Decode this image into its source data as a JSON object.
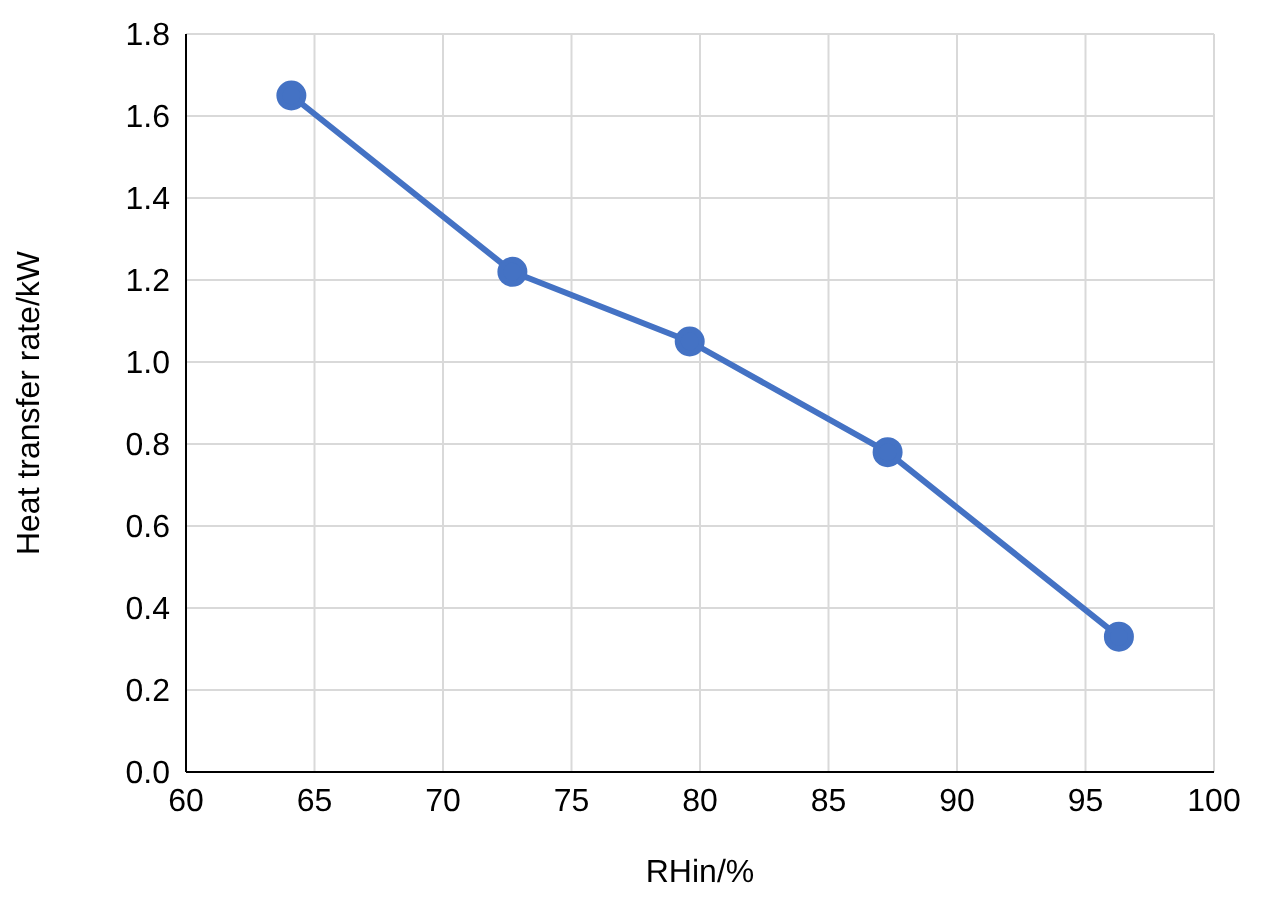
{
  "chart_data": {
    "type": "line",
    "xlabel": "RHin/%",
    "ylabel": "Heat transfer rate/kW",
    "x": [
      64.1,
      72.7,
      79.6,
      87.3,
      96.3
    ],
    "series": [
      {
        "color": "#4472c4",
        "values": [
          1.65,
          1.22,
          1.05,
          0.78,
          0.33
        ]
      }
    ],
    "xlim": [
      60,
      100
    ],
    "xticks": [
      60,
      65,
      70,
      75,
      80,
      85,
      90,
      95,
      100
    ],
    "ylim": [
      0,
      1.8
    ],
    "yticks": [
      {
        "value": 0,
        "label": "0.0"
      },
      {
        "value": 0.2,
        "label": "0.2"
      },
      {
        "value": 0.4,
        "label": "0.4"
      },
      {
        "value": 0.6,
        "label": "0.6"
      },
      {
        "value": 0.8,
        "label": "0.8"
      },
      {
        "value": 1,
        "label": "1.0"
      },
      {
        "value": 1.2,
        "label": "1.2"
      },
      {
        "value": 1.4,
        "label": "1.4"
      },
      {
        "value": 1.6,
        "label": "1.6"
      },
      {
        "value": 1.8,
        "label": "1.8"
      }
    ],
    "grid": true,
    "marker": "circle",
    "line_style": "solid",
    "legend": false
  }
}
